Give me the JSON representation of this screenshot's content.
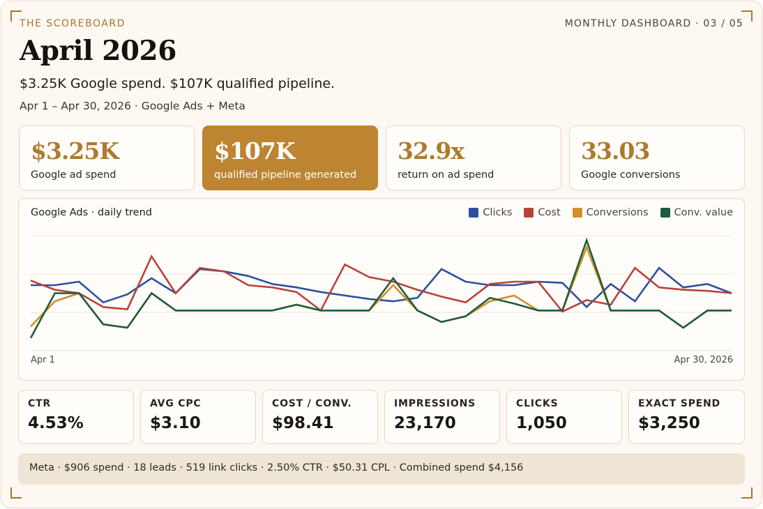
{
  "kicker": "THE SCOREBOARD",
  "deck_meta": "MONTHLY DASHBOARD · 03 / 05",
  "title": "April 2026",
  "subtitle": "$3.25K Google spend. $107K qualified pipeline.",
  "dates": "Apr 1 – Apr 30, 2026 · Google Ads + Meta",
  "kpis": [
    {
      "value": "$3.25K",
      "label": "Google ad spend"
    },
    {
      "value": "$107K",
      "label": "qualified pipeline generated"
    },
    {
      "value": "32.9x",
      "label": "return on ad spend"
    },
    {
      "value": "33.03",
      "label": "Google conversions"
    }
  ],
  "chart_data": {
    "type": "line",
    "title": "Google Ads · daily trend",
    "x_start_label": "Apr 1",
    "x_end_label": "Apr 30, 2026",
    "grid": true,
    "legend_position": "top-right",
    "ylim": [
      0,
      100
    ],
    "series": [
      {
        "name": "Clicks",
        "color": "#2f4f9e",
        "values": [
          57,
          57,
          60,
          42,
          49,
          63,
          50,
          71,
          69,
          65,
          58,
          55,
          51,
          48,
          45,
          43,
          46,
          71,
          60,
          57,
          57,
          60,
          59,
          38,
          58,
          43,
          72,
          55,
          58,
          50
        ]
      },
      {
        "name": "Cost",
        "color": "#b8433a",
        "values": [
          61,
          53,
          50,
          38,
          36,
          82,
          50,
          72,
          69,
          57,
          55,
          51,
          35,
          75,
          64,
          60,
          53,
          47,
          42,
          58,
          60,
          60,
          34,
          44,
          40,
          72,
          55,
          53,
          52,
          50
        ]
      },
      {
        "name": "Conversions",
        "color": "#d18f2a",
        "values": [
          21,
          43,
          50,
          23,
          20,
          50,
          35,
          35,
          35,
          35,
          35,
          40,
          35,
          35,
          35,
          57,
          35,
          25,
          30,
          43,
          48,
          35,
          35,
          90,
          35,
          35,
          35,
          20,
          35,
          35
        ]
      },
      {
        "name": "Conv. value",
        "color": "#1f5c3b",
        "values": [
          11,
          50,
          50,
          23,
          20,
          50,
          35,
          35,
          35,
          35,
          35,
          40,
          35,
          35,
          35,
          63,
          35,
          25,
          30,
          46,
          41,
          35,
          35,
          96,
          35,
          35,
          35,
          20,
          35,
          35
        ]
      }
    ]
  },
  "stats": [
    {
      "label": "CTR",
      "value": "4.53%"
    },
    {
      "label": "AVG CPC",
      "value": "$3.10"
    },
    {
      "label": "COST / CONV.",
      "value": "$98.41"
    },
    {
      "label": "IMPRESSIONS",
      "value": "23,170"
    },
    {
      "label": "CLICKS",
      "value": "1,050"
    },
    {
      "label": "EXACT SPEND",
      "value": "$3,250"
    }
  ],
  "footer": "Meta · $906 spend · 18 leads · 519 link clicks · 2.50% CTR · $50.31 CPL · Combined spend $4,156"
}
